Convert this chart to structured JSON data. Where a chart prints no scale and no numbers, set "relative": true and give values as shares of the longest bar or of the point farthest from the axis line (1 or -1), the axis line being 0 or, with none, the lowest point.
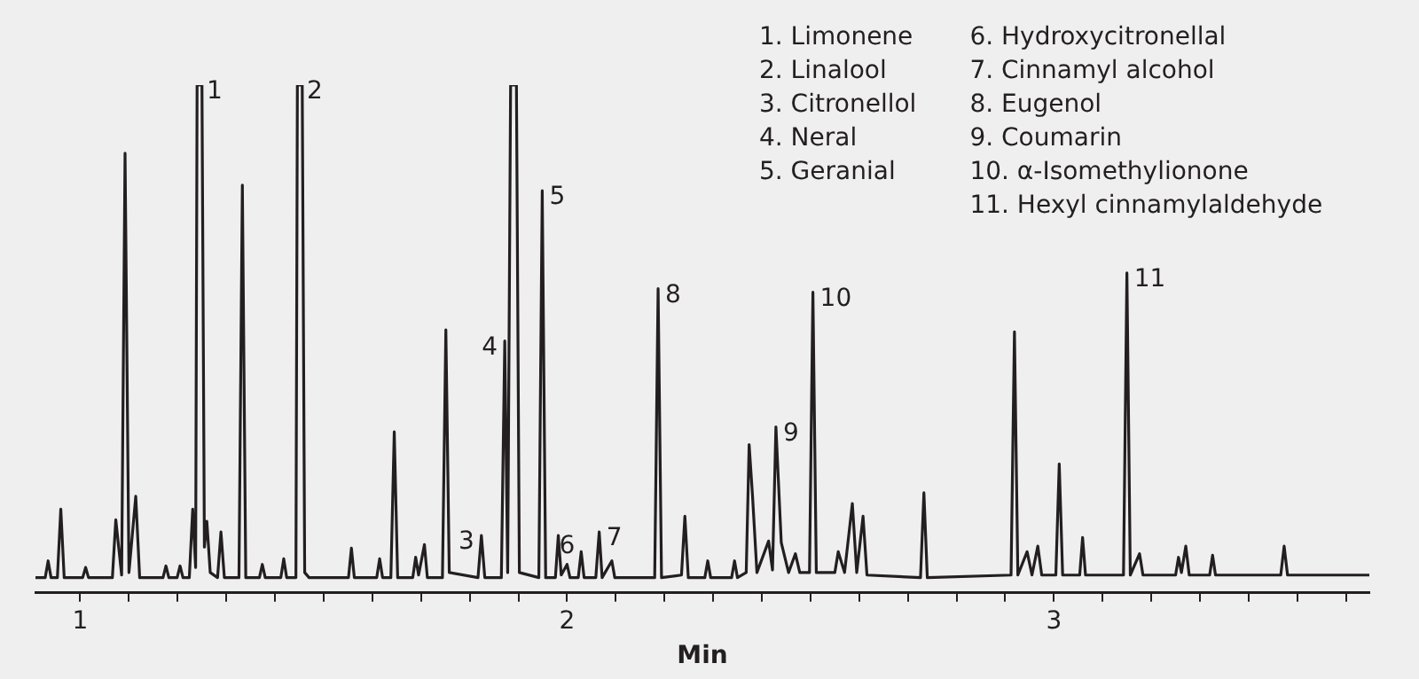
{
  "chart_data": {
    "type": "line",
    "relative": true,
    "xlabel": "Min",
    "color": "#231f20",
    "grid": false,
    "legend": false,
    "tick_labels": "x",
    "marker": "none",
    "xlim": [
      0.908,
      3.648
    ],
    "xticks": [
      {
        "value": 1,
        "label": "1"
      },
      {
        "value": 1.1,
        "label": null
      },
      {
        "value": 1.2,
        "label": null
      },
      {
        "value": 1.3,
        "label": null
      },
      {
        "value": 1.4,
        "label": null
      },
      {
        "value": 1.5,
        "label": null
      },
      {
        "value": 1.6,
        "label": null
      },
      {
        "value": 1.7,
        "label": null
      },
      {
        "value": 1.8,
        "label": null
      },
      {
        "value": 1.9,
        "label": null
      },
      {
        "value": 2,
        "label": "2"
      },
      {
        "value": 2.1,
        "label": null
      },
      {
        "value": 2.2,
        "label": null
      },
      {
        "value": 2.3,
        "label": null
      },
      {
        "value": 2.4,
        "label": null
      },
      {
        "value": 2.5,
        "label": null
      },
      {
        "value": 2.6,
        "label": null
      },
      {
        "value": 2.7,
        "label": null
      },
      {
        "value": 2.8,
        "label": null
      },
      {
        "value": 2.9,
        "label": null
      },
      {
        "value": 3,
        "label": "3"
      },
      {
        "value": 3.1,
        "label": null
      },
      {
        "value": 3.2,
        "label": null
      },
      {
        "value": 3.3,
        "label": null
      },
      {
        "value": 3.4,
        "label": null
      },
      {
        "value": 3.5,
        "label": null
      },
      {
        "value": 3.6,
        "label": null
      }
    ],
    "x": [
      0.908,
      0.928,
      0.934,
      0.94,
      0.953,
      0.96,
      0.967,
      1.005,
      1.011,
      1.017,
      1.066,
      1.073,
      1.085,
      1.092,
      1.1,
      1.114,
      1.122,
      1.17,
      1.176,
      1.182,
      1.199,
      1.205,
      1.211,
      1.224,
      1.231,
      1.237,
      1.24,
      1.25,
      1.255,
      1.26,
      1.267,
      1.282,
      1.289,
      1.296,
      1.326,
      1.333,
      1.34,
      1.368,
      1.374,
      1.38,
      1.412,
      1.418,
      1.424,
      1.443,
      1.446,
      1.456,
      1.461,
      1.47,
      1.551,
      1.557,
      1.563,
      1.609,
      1.615,
      1.621,
      1.638,
      1.645,
      1.652,
      1.683,
      1.689,
      1.695,
      1.707,
      1.713,
      1.744,
      1.751,
      1.758,
      1.817,
      1.824,
      1.831,
      1.865,
      1.872,
      1.878,
      1.884,
      1.896,
      1.902,
      1.942,
      1.949,
      1.956,
      1.976,
      1.982,
      1.988,
      2.0,
      2.006,
      2.023,
      2.029,
      2.035,
      2.059,
      2.066,
      2.072,
      2.092,
      2.098,
      2.18,
      2.187,
      2.194,
      2.235,
      2.242,
      2.249,
      2.283,
      2.289,
      2.295,
      2.338,
      2.344,
      2.35,
      2.368,
      2.374,
      2.381,
      2.39,
      2.414,
      2.422,
      2.429,
      2.44,
      2.455,
      2.469,
      2.478,
      2.498,
      2.505,
      2.512,
      2.55,
      2.557,
      2.57,
      2.586,
      2.595,
      2.608,
      2.616,
      2.726,
      2.733,
      2.74,
      2.912,
      2.919,
      2.926,
      2.945,
      2.955,
      2.967,
      2.975,
      3.004,
      3.011,
      3.018,
      3.053,
      3.059,
      3.065,
      3.143,
      3.15,
      3.157,
      3.176,
      3.183,
      3.25,
      3.256,
      3.262,
      3.271,
      3.278,
      3.32,
      3.326,
      3.332,
      3.466,
      3.473,
      3.48,
      3.648
    ],
    "values": [
      0.03,
      0.03,
      0.063,
      0.03,
      0.03,
      0.165,
      0.03,
      0.03,
      0.05,
      0.03,
      0.03,
      0.144,
      0.035,
      0.866,
      0.04,
      0.19,
      0.03,
      0.03,
      0.053,
      0.03,
      0.03,
      0.053,
      0.03,
      0.03,
      0.165,
      0.05,
      1,
      1,
      0.09,
      0.141,
      0.04,
      0.03,
      0.12,
      0.03,
      0.03,
      0.803,
      0.03,
      0.03,
      0.056,
      0.03,
      0.03,
      0.067,
      0.03,
      0.03,
      1,
      1,
      0.04,
      0.03,
      0.03,
      0.088,
      0.03,
      0.03,
      0.067,
      0.03,
      0.03,
      0.317,
      0.03,
      0.03,
      0.07,
      0.035,
      0.095,
      0.03,
      0.03,
      0.518,
      0.04,
      0.03,
      0.113,
      0.03,
      0.03,
      0.496,
      0.04,
      1,
      1,
      0.04,
      0.03,
      0.792,
      0.03,
      0.03,
      0.113,
      0.035,
      0.056,
      0.03,
      0.03,
      0.081,
      0.03,
      0.03,
      0.12,
      0.03,
      0.063,
      0.03,
      0.03,
      0.599,
      0.03,
      0.035,
      0.151,
      0.03,
      0.03,
      0.063,
      0.03,
      0.03,
      0.063,
      0.03,
      0.04,
      0.292,
      0.19,
      0.04,
      0.102,
      0.045,
      0.327,
      0.099,
      0.04,
      0.077,
      0.04,
      0.04,
      0.592,
      0.04,
      0.04,
      0.081,
      0.04,
      0.176,
      0.04,
      0.151,
      0.035,
      0.03,
      0.197,
      0.03,
      0.035,
      0.514,
      0.035,
      0.081,
      0.035,
      0.092,
      0.035,
      0.035,
      0.254,
      0.035,
      0.035,
      0.109,
      0.035,
      0.035,
      0.63,
      0.035,
      0.077,
      0.035,
      0.035,
      0.07,
      0.04,
      0.092,
      0.035,
      0.035,
      0.074,
      0.035,
      0.035,
      0.092,
      0.035,
      0.035
    ],
    "annotations": [
      {
        "text": "1",
        "x": 1.245,
        "y": 1
      },
      {
        "text": "2",
        "x": 1.451,
        "y": 1
      },
      {
        "text": "3",
        "x": 1.824,
        "y": 0.113
      },
      {
        "text": "4",
        "x": 1.872,
        "y": 0.496
      },
      {
        "text": "5",
        "x": 1.949,
        "y": 0.792
      },
      {
        "text": "6",
        "x": 2.0,
        "y": 0.056
      },
      {
        "text": "7",
        "x": 2.066,
        "y": 0.12
      },
      {
        "text": "8",
        "x": 2.187,
        "y": 0.599
      },
      {
        "text": "9",
        "x": 2.429,
        "y": 0.327
      },
      {
        "text": "10",
        "x": 2.505,
        "y": 0.592
      },
      {
        "text": "11",
        "x": 3.15,
        "y": 0.63
      },
      "1. Limonene",
      "2. Linalool",
      "3. Citronellol",
      "4. Neral",
      "5. Geranial",
      "6. Hydroxycitronellal",
      "7. Cinnamyl alcohol",
      "8. Eugenol",
      "9. Coumarin",
      "10. α-Isomethylionone",
      "11. Hexyl cinnamylaldehyde"
    ]
  }
}
